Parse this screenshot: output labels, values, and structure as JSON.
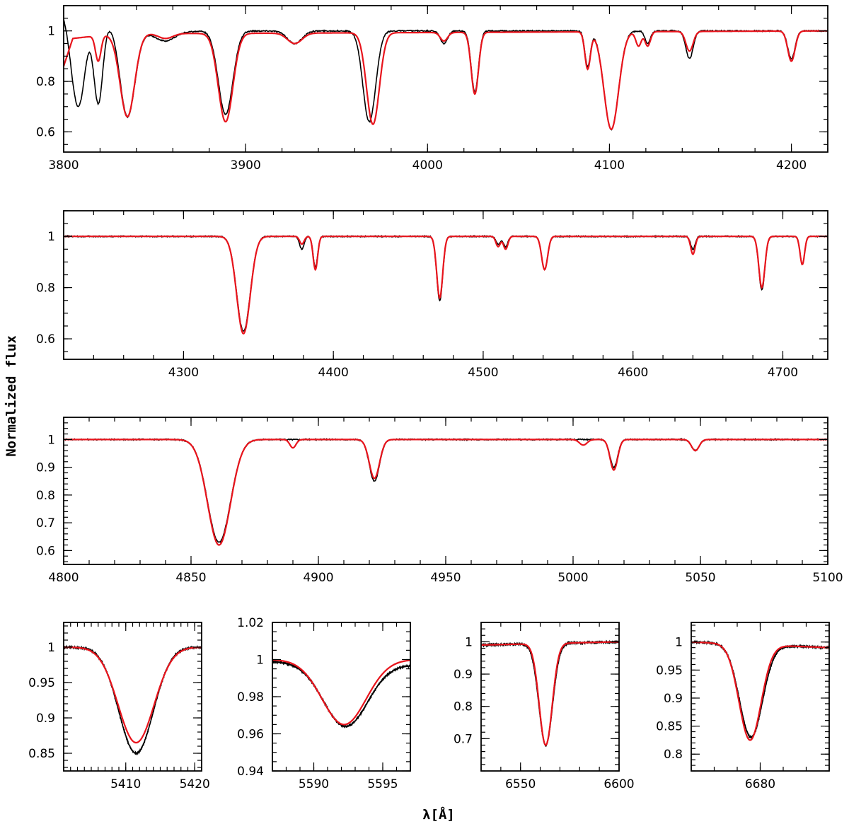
{
  "figure": {
    "ylabel": "Normalized flux",
    "xlabel": "λ[Å]"
  },
  "colors": {
    "observed": "#000000",
    "model": "#e8141c",
    "axes": "#000000"
  },
  "chart_data": [
    {
      "type": "line",
      "title": "",
      "xlim": [
        3800,
        4220
      ],
      "ylim": [
        0.52,
        1.1
      ],
      "xticks": [
        3800,
        3900,
        4000,
        4100,
        4200
      ],
      "xminor": 20,
      "yticks": [
        0.6,
        0.8,
        1
      ],
      "yminor": 0.05,
      "series": [
        {
          "name": "observed",
          "continuum": [
            [
              3800,
              1.1
            ],
            [
              3812,
              1.1
            ],
            [
              3825,
              1.03
            ],
            [
              3840,
              0.99
            ],
            [
              3880,
              1.0
            ],
            [
              4000,
              1.0
            ],
            [
              4220,
              1.0
            ]
          ],
          "lines": [
            [
              3808,
              0.7,
              4
            ],
            [
              3819,
              0.72,
              2.5
            ],
            [
              3835,
              0.66,
              4
            ],
            [
              3856,
              0.96,
              5
            ],
            [
              3889,
              0.67,
              4
            ],
            [
              3927,
              0.95,
              4
            ],
            [
              3968,
              0.64,
              3.5
            ],
            [
              4009,
              0.95,
              2
            ],
            [
              4026,
              0.76,
              2
            ],
            [
              4088,
              0.86,
              1.5
            ],
            [
              4101,
              0.61,
              4
            ],
            [
              4121,
              0.95,
              1.5
            ],
            [
              4144,
              0.89,
              2
            ],
            [
              4200,
              0.89,
              2
            ]
          ]
        },
        {
          "name": "model",
          "continuum": [
            [
              3800,
              0.86
            ],
            [
              3805,
              0.97
            ],
            [
              3830,
              0.99
            ],
            [
              3880,
              0.99
            ],
            [
              4220,
              1.0
            ]
          ],
          "lines": [
            [
              3819,
              0.88,
              1.5
            ],
            [
              3835,
              0.66,
              4
            ],
            [
              3856,
              0.97,
              4
            ],
            [
              3889,
              0.64,
              4
            ],
            [
              3927,
              0.95,
              4
            ],
            [
              3970,
              0.63,
              3.5
            ],
            [
              4009,
              0.96,
              2
            ],
            [
              4026,
              0.75,
              2
            ],
            [
              4088,
              0.85,
              1.5
            ],
            [
              4101,
              0.61,
              4
            ],
            [
              4116,
              0.94,
              1.5
            ],
            [
              4121,
              0.94,
              1.5
            ],
            [
              4144,
              0.92,
              2
            ],
            [
              4200,
              0.88,
              2
            ]
          ]
        }
      ]
    },
    {
      "type": "line",
      "title": "",
      "xlim": [
        4220,
        4730
      ],
      "ylim": [
        0.52,
        1.1
      ],
      "xticks": [
        4300,
        4400,
        4500,
        4600,
        4700
      ],
      "xminor": 20,
      "yticks": [
        0.6,
        0.8,
        1
      ],
      "yminor": 0.05,
      "series": [
        {
          "name": "observed",
          "continuum": [
            [
              4220,
              1.0
            ],
            [
              4730,
              1.0
            ]
          ],
          "lines": [
            [
              4340,
              0.63,
              4.5
            ],
            [
              4379,
              0.95,
              1.5
            ],
            [
              4388,
              0.88,
              1.5
            ],
            [
              4471,
              0.75,
              2
            ],
            [
              4510,
              0.97,
              1.5
            ],
            [
              4515,
              0.96,
              1.5
            ],
            [
              4541,
              0.87,
              2
            ],
            [
              4640,
              0.95,
              1.5
            ],
            [
              4686,
              0.79,
              2
            ],
            [
              4713,
              0.89,
              1.5
            ]
          ]
        },
        {
          "name": "model",
          "continuum": [
            [
              4220,
              1.0
            ],
            [
              4730,
              1.0
            ]
          ],
          "lines": [
            [
              4340,
              0.62,
              4.5
            ],
            [
              4379,
              0.97,
              1.5
            ],
            [
              4388,
              0.87,
              1.5
            ],
            [
              4471,
              0.76,
              2
            ],
            [
              4510,
              0.96,
              1.5
            ],
            [
              4515,
              0.95,
              1.5
            ],
            [
              4541,
              0.87,
              2
            ],
            [
              4640,
              0.93,
              1.5
            ],
            [
              4686,
              0.8,
              2
            ],
            [
              4713,
              0.89,
              1.5
            ]
          ]
        }
      ]
    },
    {
      "type": "line",
      "title": "",
      "xlim": [
        4800,
        5100
      ],
      "ylim": [
        0.55,
        1.08
      ],
      "xticks": [
        4800,
        4850,
        4900,
        4950,
        5000,
        5050,
        5100
      ],
      "xminor": 10,
      "yticks": [
        0.6,
        0.7,
        0.8,
        0.9,
        1
      ],
      "yminor": 0.02,
      "series": [
        {
          "name": "observed",
          "continuum": [
            [
              4800,
              1.0
            ],
            [
              5100,
              1.0
            ]
          ],
          "lines": [
            [
              4861,
              0.63,
              4.5
            ],
            [
              4922,
              0.85,
              2
            ],
            [
              5016,
              0.9,
              1.5
            ],
            [
              5048,
              0.96,
              1.5
            ]
          ]
        },
        {
          "name": "model",
          "continuum": [
            [
              4800,
              1.0
            ],
            [
              5100,
              1.0
            ]
          ],
          "lines": [
            [
              4861,
              0.62,
              4.5
            ],
            [
              4890,
              0.97,
              1.2
            ],
            [
              4922,
              0.86,
              2
            ],
            [
              5004,
              0.98,
              1.5
            ],
            [
              5016,
              0.89,
              1.5
            ],
            [
              5048,
              0.96,
              1.5
            ]
          ]
        }
      ]
    },
    {
      "type": "line",
      "title": "",
      "xlim": [
        5401,
        5421
      ],
      "ylim": [
        0.825,
        1.035
      ],
      "xticks": [
        5410,
        5420
      ],
      "xminor": 1,
      "yticks": [
        0.85,
        0.9,
        0.95,
        1
      ],
      "yminor": 0.01,
      "series": [
        {
          "name": "observed",
          "continuum": [
            [
              5401,
              1.0
            ],
            [
              5421,
              1.0
            ]
          ],
          "lines": [
            [
              5411.5,
              0.85,
              2.5
            ]
          ]
        },
        {
          "name": "model",
          "continuum": [
            [
              5401,
              1.0
            ],
            [
              5421,
              1.0
            ]
          ],
          "lines": [
            [
              5411.5,
              0.865,
              2.6
            ]
          ]
        }
      ]
    },
    {
      "type": "line",
      "title": "",
      "xlim": [
        5587,
        5597
      ],
      "ylim": [
        0.94,
        1.02
      ],
      "xticks": [
        5590,
        5595
      ],
      "xminor": 1,
      "yticks": [
        0.94,
        0.96,
        0.98,
        1,
        1.02
      ],
      "yminor": 0.005,
      "series": [
        {
          "name": "observed",
          "continuum": [
            [
              5587,
              0.999
            ],
            [
              5597,
              0.997
            ]
          ],
          "lines": [
            [
              5592.3,
              0.964,
              1.6
            ]
          ]
        },
        {
          "name": "model",
          "continuum": [
            [
              5587,
              1.0
            ],
            [
              5597,
              1.0
            ]
          ],
          "lines": [
            [
              5592.2,
              0.965,
              1.6
            ]
          ]
        }
      ]
    },
    {
      "type": "line",
      "title": "",
      "xlim": [
        6530,
        6600
      ],
      "ylim": [
        0.6,
        1.06
      ],
      "xticks": [
        6550,
        6600
      ],
      "xminor": 10,
      "yticks": [
        0.7,
        0.8,
        0.9,
        1
      ],
      "yminor": 0.02,
      "series": [
        {
          "name": "observed",
          "continuum": [
            [
              6530,
              0.99
            ],
            [
              6600,
              1.0
            ]
          ],
          "lines": [
            [
              6562.8,
              0.68,
              3.5
            ]
          ]
        },
        {
          "name": "model",
          "continuum": [
            [
              6530,
              0.99
            ],
            [
              6600,
              1.0
            ]
          ],
          "lines": [
            [
              6562.8,
              0.68,
              3.3
            ]
          ]
        }
      ]
    },
    {
      "type": "line",
      "title": "",
      "xlim": [
        6665,
        6695
      ],
      "ylim": [
        0.77,
        1.035
      ],
      "xticks": [
        6680
      ],
      "xminor": 5,
      "yticks": [
        0.8,
        0.85,
        0.9,
        0.95,
        1
      ],
      "yminor": 0.01,
      "series": [
        {
          "name": "observed",
          "continuum": [
            [
              6665,
              1.0
            ],
            [
              6695,
              0.99
            ]
          ],
          "lines": [
            [
              6678,
              0.83,
              2.5
            ]
          ]
        },
        {
          "name": "model",
          "continuum": [
            [
              6665,
              1.0
            ],
            [
              6695,
              0.99
            ]
          ],
          "lines": [
            [
              6677.8,
              0.825,
              2.4
            ]
          ]
        }
      ]
    }
  ]
}
